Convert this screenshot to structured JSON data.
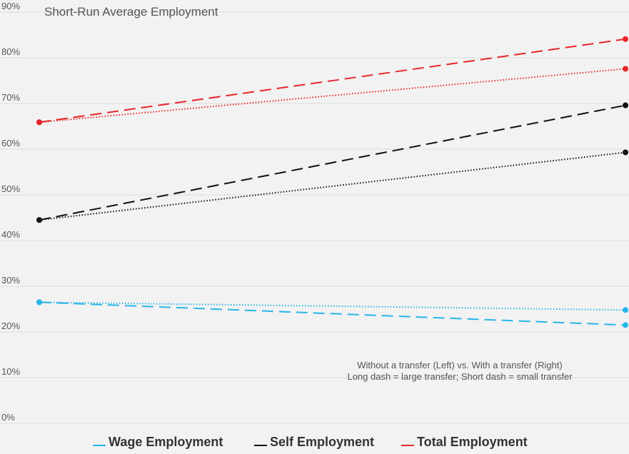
{
  "chart_data": {
    "type": "line",
    "title": "Short-Run Average Employment",
    "xlabel": "",
    "ylabel": "",
    "x": [
      "Without a transfer",
      "With a transfer"
    ],
    "ylim": [
      0,
      90
    ],
    "yticks": [
      0,
      10,
      20,
      30,
      40,
      50,
      60,
      70,
      80,
      90
    ],
    "ytick_labels": [
      "0%",
      "10%",
      "20%",
      "30%",
      "40%",
      "50%",
      "60%",
      "70%",
      "80%",
      "90%"
    ],
    "grid": true,
    "annotation": [
      "Without a transfer (Left) vs. With a transfer (Right)",
      "Long dash = large transfer; Short dash = small transfer"
    ],
    "legend": {
      "placement": "bottom",
      "entries": [
        {
          "name": "Wage Employment",
          "color": "#29b6e8"
        },
        {
          "name": "Self Employment",
          "color": "#111111"
        },
        {
          "name": "Total Employment",
          "color": "#e8262a"
        }
      ]
    },
    "series": [
      {
        "name": "Wage Employment - large transfer",
        "group": "Wage Employment",
        "dash": "long",
        "color": "#29b6e8",
        "values": [
          26.5,
          21.5
        ]
      },
      {
        "name": "Wage Employment - small transfer",
        "group": "Wage Employment",
        "dash": "short",
        "color": "#29b6e8",
        "values": [
          26.5,
          24.8
        ]
      },
      {
        "name": "Self Employment - large transfer",
        "group": "Self Employment",
        "dash": "long",
        "color": "#111111",
        "values": [
          44.5,
          69.6
        ]
      },
      {
        "name": "Self Employment - small transfer",
        "group": "Self Employment",
        "dash": "short",
        "color": "#111111",
        "values": [
          44.5,
          59.3
        ]
      },
      {
        "name": "Total Employment - large transfer",
        "group": "Total Employment",
        "dash": "long",
        "color": "#e8262a",
        "values": [
          65.9,
          84.1
        ]
      },
      {
        "name": "Total Employment - small transfer",
        "group": "Total Employment",
        "dash": "short",
        "color": "#e8262a",
        "values": [
          65.9,
          77.6
        ]
      }
    ]
  }
}
